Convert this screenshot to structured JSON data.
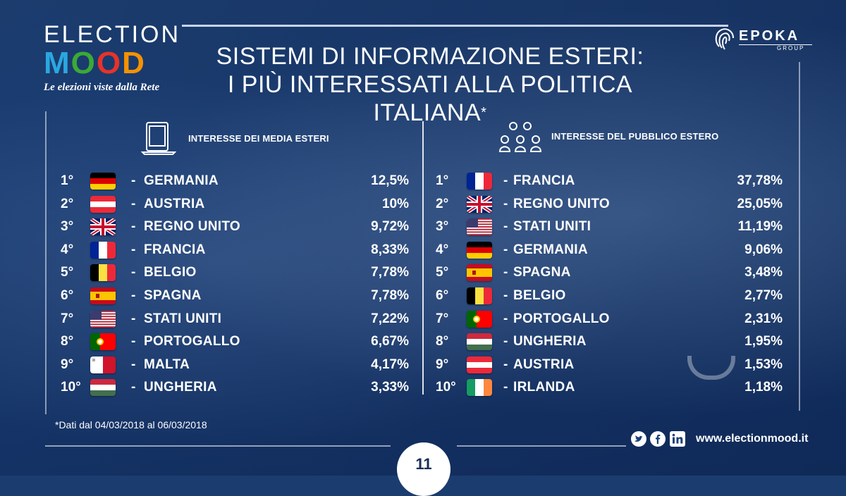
{
  "logo": {
    "line1": "ELECTION",
    "m": "M",
    "o1": "O",
    "o2": "O",
    "d": "D",
    "tagline": "Le elezioni viste dalla Rete"
  },
  "title": {
    "line1": "SISTEMI DI INFORMAZIONE ESTERI:",
    "line2": "I PIÙ INTERESSATI ALLA POLITICA ITALIANA",
    "asterisk": "*"
  },
  "brand": {
    "name": "EPOKA",
    "sub": "GROUP"
  },
  "left": {
    "heading": "INTERESSE DEI MEDIA ESTERI",
    "icon": "tablet-laptop-icon",
    "rows": [
      {
        "rank": "1°",
        "flag": "de",
        "country": "GERMANIA",
        "pct": "12,5%"
      },
      {
        "rank": "2°",
        "flag": "at",
        "country": "AUSTRIA",
        "pct": "10%"
      },
      {
        "rank": "3°",
        "flag": "gb",
        "country": "REGNO UNITO",
        "pct": "9,72%"
      },
      {
        "rank": "4°",
        "flag": "fr",
        "country": "FRANCIA",
        "pct": "8,33%"
      },
      {
        "rank": "5°",
        "flag": "be",
        "country": "BELGIO",
        "pct": "7,78%"
      },
      {
        "rank": "6°",
        "flag": "es",
        "country": "SPAGNA",
        "pct": "7,78%"
      },
      {
        "rank": "7°",
        "flag": "us",
        "country": "STATI UNITI",
        "pct": "7,22%"
      },
      {
        "rank": "8°",
        "flag": "pt",
        "country": "PORTOGALLO",
        "pct": "6,67%"
      },
      {
        "rank": "9°",
        "flag": "mt",
        "country": "MALTA",
        "pct": "4,17%"
      },
      {
        "rank": "10°",
        "flag": "hu",
        "country": "UNGHERIA",
        "pct": "3,33%"
      }
    ]
  },
  "right": {
    "heading": "INTERESSE DEL PUBBLICO ESTERO",
    "icon": "people-group-icon",
    "rows": [
      {
        "rank": "1°",
        "flag": "fr",
        "country": "FRANCIA",
        "pct": "37,78%"
      },
      {
        "rank": "2°",
        "flag": "gb",
        "country": "REGNO UNITO",
        "pct": "25,05%"
      },
      {
        "rank": "3°",
        "flag": "us",
        "country": "STATI UNITI",
        "pct": "11,19%"
      },
      {
        "rank": "4°",
        "flag": "de",
        "country": "GERMANIA",
        "pct": "9,06%"
      },
      {
        "rank": "5°",
        "flag": "es",
        "country": "SPAGNA",
        "pct": "3,48%"
      },
      {
        "rank": "6°",
        "flag": "be",
        "country": "BELGIO",
        "pct": "2,77%"
      },
      {
        "rank": "7°",
        "flag": "pt",
        "country": "PORTOGALLO",
        "pct": "2,31%"
      },
      {
        "rank": "8°",
        "flag": "hu",
        "country": "UNGHERIA",
        "pct": "1,95%"
      },
      {
        "rank": "9°",
        "flag": "at",
        "country": "AUSTRIA",
        "pct": "1,53%"
      },
      {
        "rank": "10°",
        "flag": "ie",
        "country": "IRLANDA",
        "pct": "1,18%"
      }
    ]
  },
  "dash": "-",
  "footnote": "*Dati dal 04/03/2018 al 06/03/2018",
  "footer": {
    "website": "www.electionmood.it",
    "page": "11",
    "social": [
      "twitter-icon",
      "facebook-icon",
      "linkedin-icon"
    ]
  }
}
